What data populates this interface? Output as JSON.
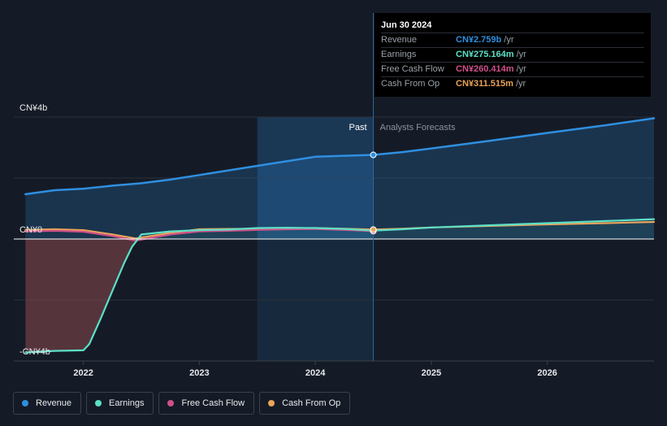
{
  "chart_data": {
    "type": "line",
    "y_tick_labels": [
      "CN¥4b",
      "CN¥0",
      "-CN¥4b"
    ],
    "y_ticks": [
      4,
      0,
      -4
    ],
    "ylim": [
      -4,
      4
    ],
    "x_tick_labels": [
      "2022",
      "2023",
      "2024",
      "2025",
      "2026"
    ],
    "x_ticks": [
      2022.0,
      2023.0,
      2024.0,
      2025.0,
      2026.0
    ],
    "xlim": [
      2021.4,
      2026.92
    ],
    "divider_x": 2024.5,
    "forecast_shade_start": 2023.5,
    "past_label": "Past",
    "forecast_label": "Analysts Forecasts",
    "series": [
      {
        "name": "Revenue",
        "color": "#2f8fe0",
        "x": [
          2021.5,
          2021.75,
          2022.0,
          2022.25,
          2022.5,
          2022.75,
          2023.0,
          2023.25,
          2023.5,
          2023.75,
          2024.0,
          2024.25,
          2024.5,
          2024.75,
          2025.0,
          2025.5,
          2026.0,
          2026.5,
          2026.92
        ],
        "values": [
          1.47,
          1.6,
          1.65,
          1.75,
          1.83,
          1.95,
          2.1,
          2.25,
          2.4,
          2.55,
          2.7,
          2.73,
          2.759,
          2.85,
          2.97,
          3.22,
          3.48,
          3.73,
          3.96
        ]
      },
      {
        "name": "Earnings",
        "color": "#5ce0c7",
        "x": [
          2021.5,
          2021.75,
          2022.0,
          2022.05,
          2022.15,
          2022.25,
          2022.35,
          2022.42,
          2022.5,
          2022.75,
          2023.0,
          2023.25,
          2023.5,
          2023.75,
          2024.0,
          2024.25,
          2024.5,
          2024.75,
          2025.0,
          2025.5,
          2026.0,
          2026.5,
          2026.92
        ],
        "values": [
          -3.72,
          -3.67,
          -3.65,
          -3.45,
          -2.6,
          -1.7,
          -0.8,
          -0.25,
          0.15,
          0.25,
          0.29,
          0.31,
          0.36,
          0.37,
          0.36,
          0.33,
          0.275,
          0.32,
          0.38,
          0.45,
          0.52,
          0.59,
          0.65
        ]
      },
      {
        "name": "Free Cash Flow",
        "color": "#d0508a",
        "x": [
          2021.5,
          2021.75,
          2022.0,
          2022.25,
          2022.45,
          2022.75,
          2023.0,
          2023.25,
          2023.5,
          2023.75,
          2024.0,
          2024.25,
          2024.5
        ],
        "values": [
          0.25,
          0.27,
          0.24,
          0.1,
          -0.05,
          0.15,
          0.25,
          0.27,
          0.3,
          0.32,
          0.33,
          0.3,
          0.26
        ]
      },
      {
        "name": "Cash From Op",
        "color": "#e9a45a",
        "x": [
          2021.5,
          2021.75,
          2022.0,
          2022.25,
          2022.45,
          2022.75,
          2023.0,
          2023.25,
          2023.5,
          2023.75,
          2024.0,
          2024.25,
          2024.5,
          2024.75,
          2025.0,
          2025.5,
          2026.0,
          2026.5,
          2026.92
        ],
        "values": [
          0.3,
          0.32,
          0.29,
          0.15,
          0.02,
          0.2,
          0.32,
          0.33,
          0.34,
          0.35,
          0.36,
          0.34,
          0.31,
          0.34,
          0.38,
          0.43,
          0.48,
          0.52,
          0.56
        ]
      }
    ],
    "tooltip": {
      "date": "Jun 30 2024",
      "rows": [
        {
          "name": "Revenue",
          "value": "CN¥2.759b",
          "unit": "/yr",
          "color": "#2f8fe0"
        },
        {
          "name": "Earnings",
          "value": "CN¥275.164m",
          "unit": "/yr",
          "color": "#5ce0c7"
        },
        {
          "name": "Free Cash Flow",
          "value": "CN¥260.414m",
          "unit": "/yr",
          "color": "#d0508a"
        },
        {
          "name": "Cash From Op",
          "value": "CN¥311.515m",
          "unit": "/yr",
          "color": "#e9a45a"
        }
      ]
    }
  },
  "legend": [
    {
      "label": "Revenue",
      "color": "#2f8fe0"
    },
    {
      "label": "Earnings",
      "color": "#5ce0c7"
    },
    {
      "label": "Free Cash Flow",
      "color": "#d0508a"
    },
    {
      "label": "Cash From Op",
      "color": "#e9a45a"
    }
  ]
}
